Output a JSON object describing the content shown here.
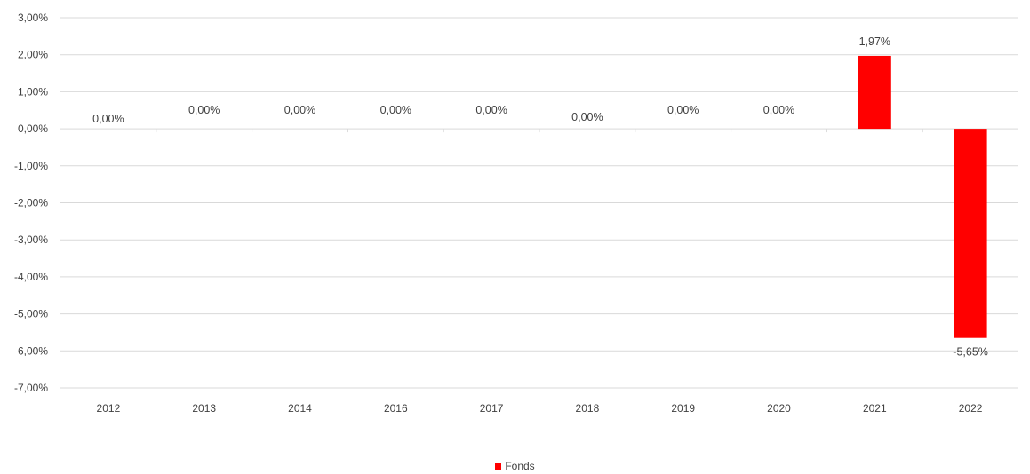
{
  "chart_data": {
    "type": "bar",
    "categories": [
      "2012",
      "2013",
      "2014",
      "2016",
      "2017",
      "2018",
      "2019",
      "2020",
      "2021",
      "2022"
    ],
    "series": [
      {
        "name": "Fonds",
        "color": "#ff0000",
        "values": [
          0.0,
          0.0,
          0.0,
          0.0,
          0.0,
          0.0,
          0.0,
          0.0,
          1.97,
          -5.65
        ],
        "data_labels": [
          "0,00%",
          "0,00%",
          "0,00%",
          "0,00%",
          "0,00%",
          "0,00%",
          "0,00%",
          "0,00%",
          "1,97%",
          "-5,65%"
        ]
      }
    ],
    "title": "",
    "xlabel": "",
    "ylabel": "",
    "ylim": [
      -7,
      3
    ],
    "y_ticks": [
      3,
      2,
      1,
      0,
      -1,
      -2,
      -3,
      -4,
      -5,
      -6,
      -7
    ],
    "y_tick_labels": [
      "3,00%",
      "2,00%",
      "1,00%",
      "0,00%",
      "-1,00%",
      "-2,00%",
      "-3,00%",
      "-4,00%",
      "-5,00%",
      "-6,00%",
      "-7,00%"
    ],
    "grid": true,
    "legend_position": "bottom-center"
  },
  "legend": {
    "label": "Fonds",
    "color": "#ff0000"
  }
}
